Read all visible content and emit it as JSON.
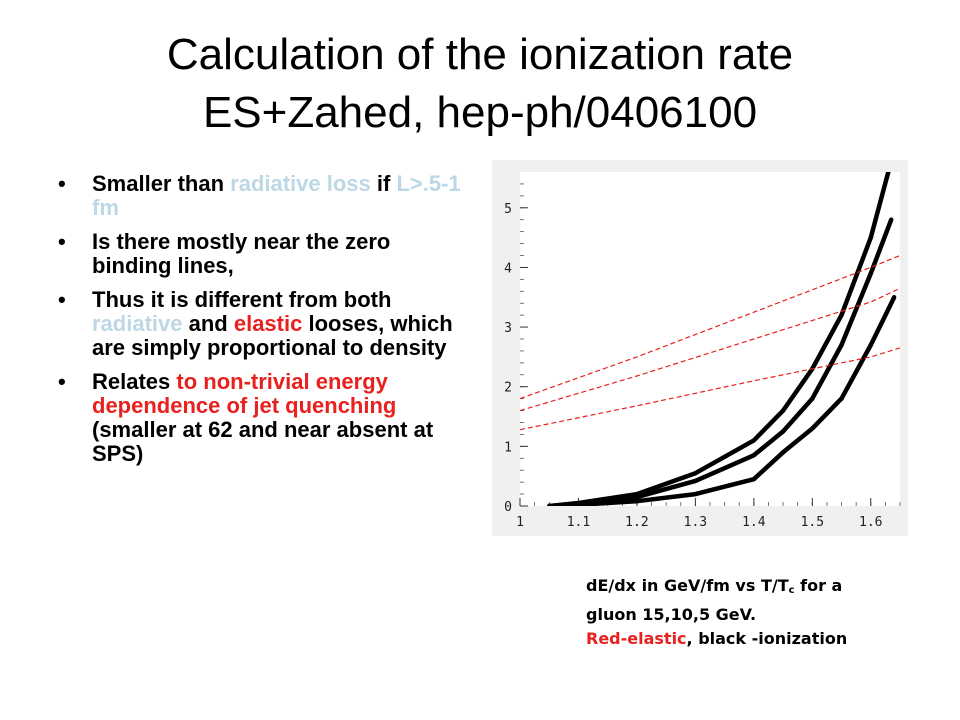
{
  "slide": {
    "title_line1": "Calculation of the ionization rate",
    "title_line2": "ES+Zahed, hep-ph/0406100",
    "bullets": [
      {
        "segments": [
          {
            "text": "Smaller than ",
            "color": "#000000"
          },
          {
            "text": "radiative loss",
            "color": "#bcd7e6"
          },
          {
            "text": " if ",
            "color": "#000000"
          },
          {
            "text": "L>.5-1 fm",
            "color": "#bcd7e6"
          }
        ]
      },
      {
        "segments": [
          {
            "text": "Is there mostly near the zero binding lines,",
            "color": "#000000"
          }
        ]
      },
      {
        "segments": [
          {
            "text": "Thus it is different from both ",
            "color": "#000000"
          },
          {
            "text": "radiative",
            "color": "#bcd7e6"
          },
          {
            "text": " and ",
            "color": "#000000"
          },
          {
            "text": "elastic",
            "color": "#e8211f"
          },
          {
            "text": " looses, which are simply proportional to density",
            "color": "#000000"
          }
        ]
      },
      {
        "segments": [
          {
            "text": "Relates ",
            "color": "#000000"
          },
          {
            "text": "to non-trivial energy dependence of jet quenching",
            "color": "#e8211f"
          },
          {
            "text": " (smaller at 62 and near absent at SPS)",
            "color": "#000000"
          }
        ]
      }
    ],
    "bullet_char": "•",
    "caption": {
      "line1_a": "dE/dx in GeV/fm vs T/T",
      "line1_sub": "c",
      "line1_b": " for a",
      "line2": "gluon 15,10,5 GeV.",
      "line3_red": "Red-elastic",
      "line3_rest": ", black -ionization"
    }
  },
  "chart_data": {
    "type": "line",
    "xlim": [
      1.0,
      1.65
    ],
    "ylim": [
      0,
      5.6
    ],
    "xticks": [
      1,
      1.1,
      1.2,
      1.3,
      1.4,
      1.5,
      1.6
    ],
    "xtick_labels": [
      "1",
      "1.1",
      "1.2",
      "1.3",
      "1.4",
      "1.5",
      "1.6"
    ],
    "yticks": [
      0,
      1,
      2,
      3,
      4,
      5
    ],
    "ytick_labels": [
      "0",
      "1",
      "2",
      "3",
      "4",
      "5"
    ],
    "grid": false,
    "background": "#f0f0f0",
    "series": [
      {
        "color": "#000000",
        "style": "solid",
        "x": [
          1.05,
          1.1,
          1.2,
          1.3,
          1.4,
          1.45,
          1.5,
          1.55,
          1.6,
          1.63
        ],
        "y": [
          0.0,
          0.05,
          0.2,
          0.55,
          1.1,
          1.6,
          2.3,
          3.2,
          4.5,
          5.6
        ]
      },
      {
        "color": "#000000",
        "style": "solid",
        "x": [
          1.05,
          1.1,
          1.2,
          1.3,
          1.4,
          1.45,
          1.5,
          1.55,
          1.6,
          1.635
        ],
        "y": [
          0.0,
          0.03,
          0.15,
          0.42,
          0.85,
          1.25,
          1.8,
          2.7,
          3.9,
          4.8
        ]
      },
      {
        "color": "#000000",
        "style": "solid",
        "x": [
          1.05,
          1.1,
          1.2,
          1.3,
          1.4,
          1.45,
          1.5,
          1.55,
          1.6,
          1.64
        ],
        "y": [
          0.0,
          0.02,
          0.08,
          0.2,
          0.45,
          0.9,
          1.3,
          1.8,
          2.7,
          3.5
        ]
      },
      {
        "color": "#e8211f",
        "style": "dashed",
        "x": [
          1.0,
          1.2,
          1.4,
          1.6,
          1.65
        ],
        "y": [
          1.8,
          2.5,
          3.25,
          4.0,
          4.2
        ]
      },
      {
        "color": "#e8211f",
        "style": "dashed",
        "x": [
          1.0,
          1.2,
          1.4,
          1.6,
          1.65
        ],
        "y": [
          1.6,
          2.18,
          2.8,
          3.42,
          3.65
        ]
      },
      {
        "color": "#e8211f",
        "style": "dashed",
        "x": [
          1.0,
          1.2,
          1.4,
          1.6,
          1.65
        ],
        "y": [
          1.28,
          1.68,
          2.1,
          2.5,
          2.65
        ]
      }
    ]
  }
}
